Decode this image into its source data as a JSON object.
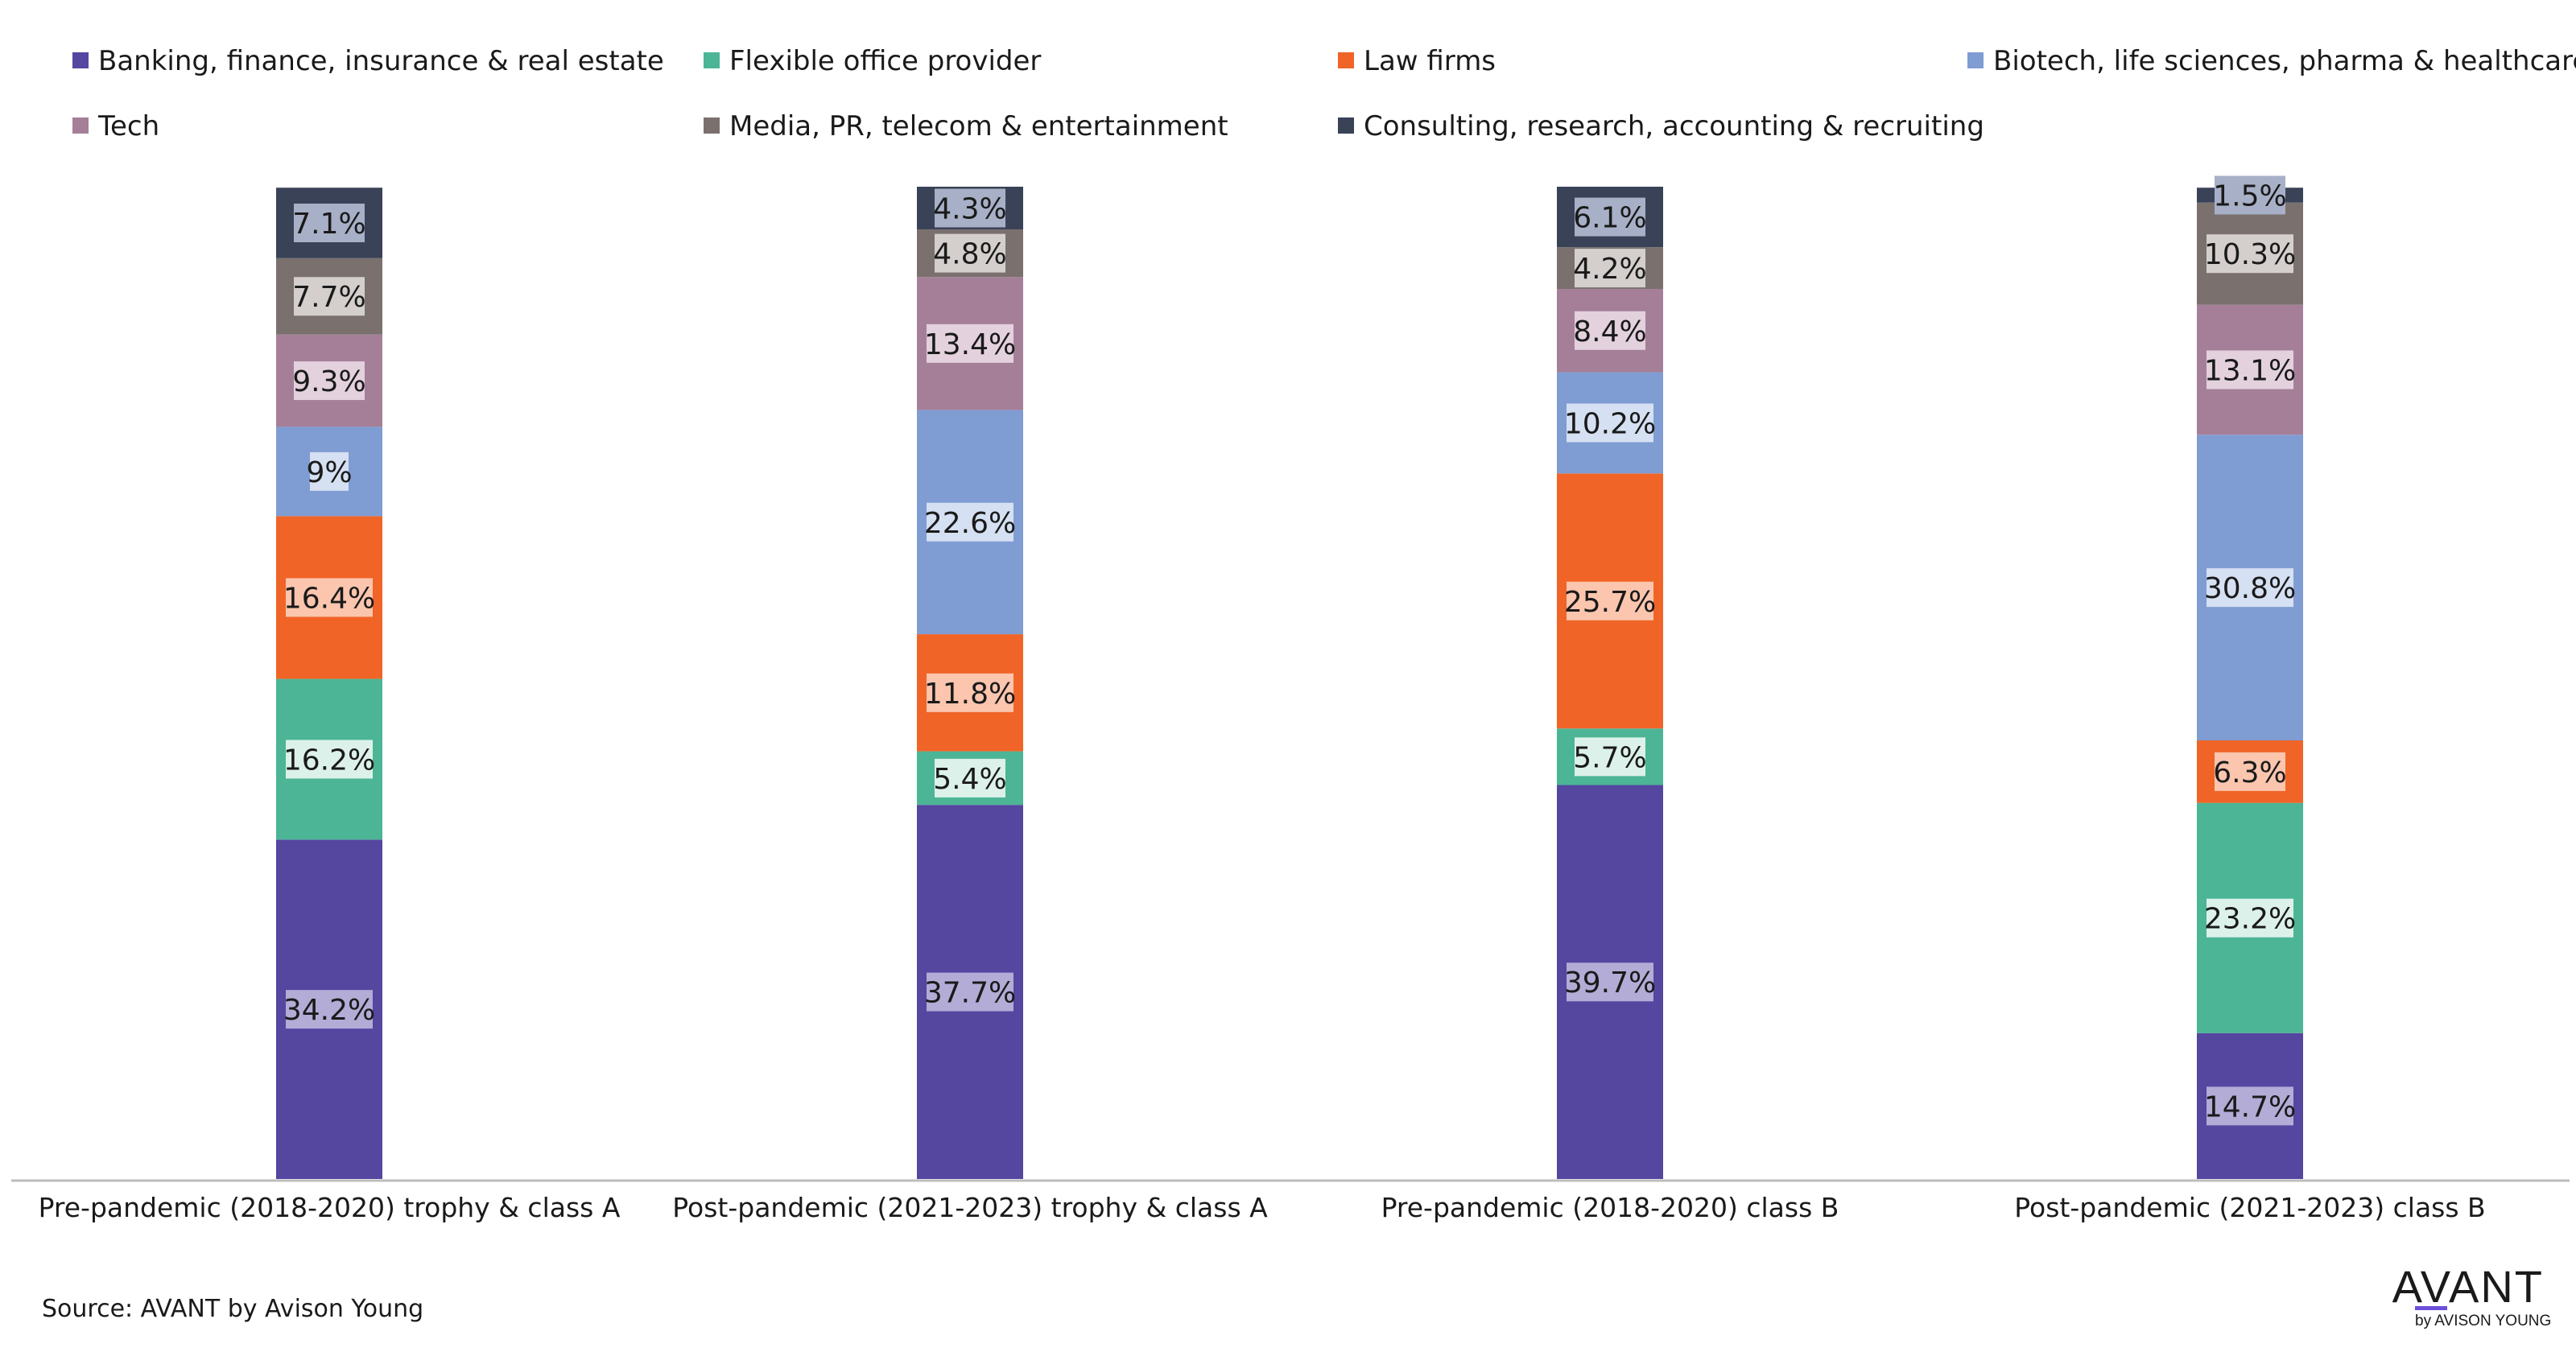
{
  "chart_data": {
    "type": "bar",
    "stacked": true,
    "categories": [
      "Pre-pandemic (2018-2020) trophy & class A",
      "Post-pandemic (2021-2023) trophy & class A",
      "Pre-pandemic (2018-2020) class B",
      "Post-pandemic (2021-2023) class B"
    ],
    "ylim": [
      0,
      100
    ],
    "legend_position": "top",
    "grid": false,
    "series": [
      {
        "name": "Banking, finance, insurance & real estate",
        "color": "#5546a0",
        "label_bg": "#b2acd6",
        "values": [
          34.2,
          37.7,
          39.7,
          14.7
        ],
        "labels": [
          "34.2%",
          "37.7%",
          "39.7%",
          "14.7%"
        ]
      },
      {
        "name": "Flexible office provider",
        "color": "#4cb596",
        "label_bg": "#dcf1e9",
        "values": [
          16.2,
          5.4,
          5.7,
          23.2
        ],
        "labels": [
          "16.2%",
          "5.4%",
          "5.7%",
          "23.2%"
        ]
      },
      {
        "name": "Law firms",
        "color": "#f06427",
        "label_bg": "#fbc5ae",
        "values": [
          16.4,
          11.8,
          25.7,
          6.3
        ],
        "labels": [
          "16.4%",
          "11.8%",
          "25.7%",
          "6.3%"
        ]
      },
      {
        "name": "Biotech, life sciences, pharma & healthcare",
        "color": "#7f9cd3",
        "label_bg": "#d5e0f2",
        "values": [
          9,
          22.6,
          10.2,
          30.8
        ],
        "labels": [
          "9%",
          "22.6%",
          "10.2%",
          "30.8%"
        ]
      },
      {
        "name": "Tech",
        "color": "#a57f98",
        "label_bg": "#e3d1dd",
        "values": [
          9.3,
          13.4,
          8.4,
          13.1
        ],
        "labels": [
          "9.3%",
          "13.4%",
          "8.4%",
          "13.1%"
        ]
      },
      {
        "name": "Media, PR, telecom & entertainment",
        "color": "#7a706e",
        "label_bg": "#d4cfcd",
        "values": [
          7.7,
          4.8,
          4.2,
          10.3
        ],
        "labels": [
          "7.7%",
          "4.8%",
          "4.2%",
          "10.3%"
        ]
      },
      {
        "name": "Consulting, research, accounting & recruiting",
        "color": "#3a4258",
        "label_bg": "#a7b0c6",
        "values": [
          7.1,
          4.3,
          6.1,
          1.5
        ],
        "labels": [
          "7.1%",
          "4.3%",
          "6.1%",
          "1.5%"
        ]
      }
    ]
  },
  "source": "Source: AVANT by Avison Young",
  "logo": {
    "name": "AVANT",
    "sub": "by AVISON YOUNG",
    "accent": "#6b4fd8"
  }
}
